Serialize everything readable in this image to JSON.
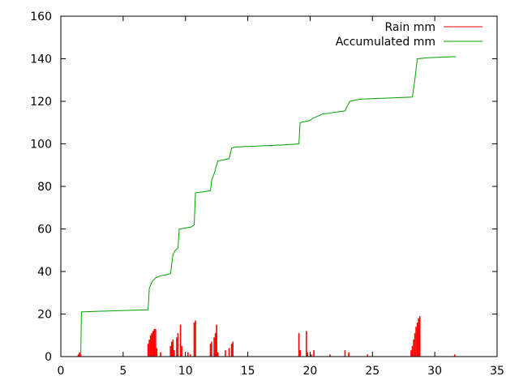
{
  "chart_data": {
    "type": "line",
    "title": "",
    "xlabel": "",
    "ylabel": "",
    "xlim": [
      0,
      35
    ],
    "ylim": [
      0,
      160
    ],
    "x_ticks": [
      "0",
      "5",
      "10",
      "15",
      "20",
      "25",
      "30",
      "35"
    ],
    "y_ticks": [
      "0",
      "20",
      "40",
      "60",
      "80",
      "100",
      "120",
      "140",
      "160"
    ],
    "grid": false,
    "legend_position": "top-right",
    "colors": {
      "rain": "#ff0000",
      "accumulated": "#00a000"
    },
    "series": [
      {
        "name": "Rain mm",
        "style": "impulses",
        "x": [
          1.4,
          1.5,
          1.6,
          7.0,
          7.1,
          7.2,
          7.3,
          7.4,
          7.5,
          7.6,
          7.7,
          8.0,
          8.8,
          8.9,
          9.0,
          9.1,
          9.3,
          9.4,
          9.6,
          9.7,
          10.2,
          10.4,
          10.7,
          10.8,
          12.0,
          12.1,
          12.3,
          12.4,
          12.5,
          12.6,
          13.2,
          13.5,
          13.7,
          13.8,
          19.1,
          19.2,
          19.7,
          19.8,
          20.1,
          20.3,
          21.6,
          22.8,
          23.1,
          24.6,
          28.1,
          28.2,
          28.3,
          28.4,
          28.5,
          28.6,
          28.7,
          28.8,
          31.6
        ],
        "y": [
          1,
          2,
          1,
          6,
          8,
          10,
          11,
          12,
          13,
          13,
          4,
          2,
          5,
          7,
          8,
          3,
          9,
          11,
          15,
          5,
          2,
          1,
          16,
          17,
          6,
          7,
          9,
          11,
          15,
          2,
          3,
          4,
          6,
          7,
          11,
          3,
          12,
          2,
          1,
          3,
          1,
          3,
          2,
          1,
          3,
          5,
          8,
          11,
          14,
          16,
          18,
          19,
          1
        ]
      },
      {
        "name": "Accumulated mm",
        "style": "steps",
        "x": [
          1.6,
          1.65,
          4.0,
          7.0,
          7.1,
          7.3,
          7.6,
          8.0,
          8.5,
          8.8,
          9.0,
          9.2,
          9.4,
          9.5,
          9.6,
          10.5,
          10.7,
          10.8,
          11.5,
          12.0,
          12.1,
          12.3,
          12.5,
          12.6,
          13.5,
          13.7,
          14.0,
          18.0,
          19.1,
          19.2,
          20.0,
          20.2,
          21.0,
          22.8,
          23.0,
          23.2,
          24.0,
          26.0,
          28.2,
          28.4,
          28.6,
          29.5,
          31.7
        ],
        "y": [
          0,
          21,
          21.5,
          22,
          32,
          35,
          37,
          38,
          38.5,
          39,
          48,
          50,
          51,
          60,
          60,
          61,
          62,
          77,
          77.5,
          78,
          83,
          86,
          90,
          92,
          93,
          98,
          98.5,
          99.5,
          100,
          110,
          111,
          112,
          114,
          115.5,
          118,
          120,
          121,
          121.5,
          122,
          130,
          140,
          140.5,
          141
        ]
      }
    ]
  }
}
